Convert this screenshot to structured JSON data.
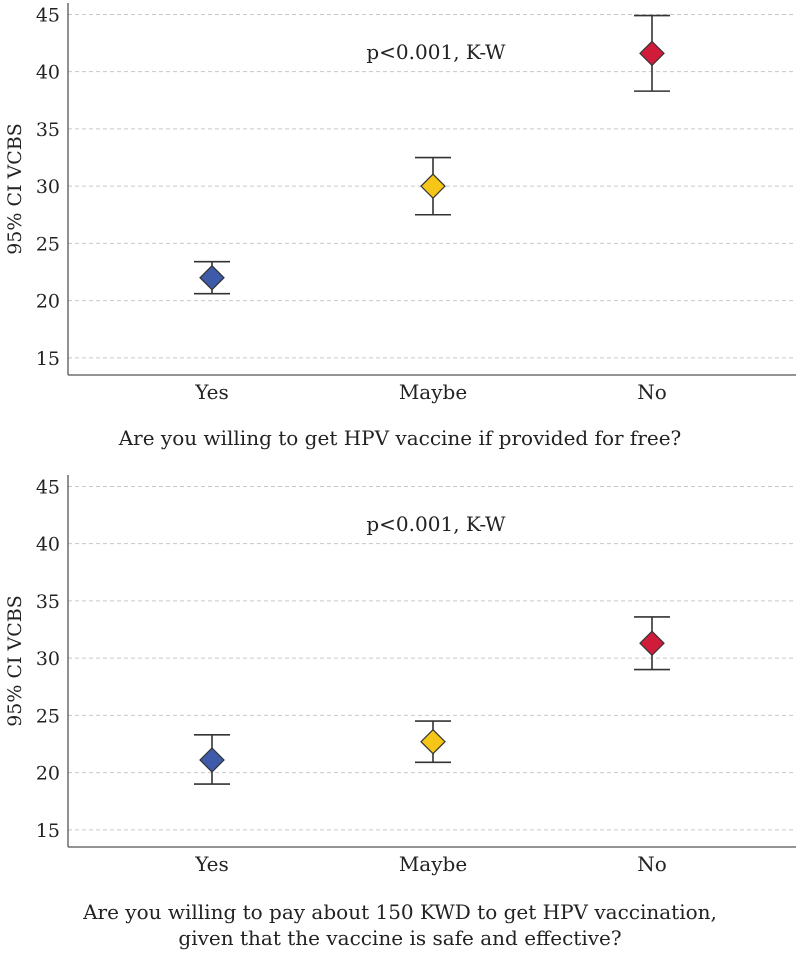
{
  "chart_data": [
    {
      "type": "scatter",
      "title": "",
      "annotation": "p<0.001, K-W",
      "xlabel": "Are you willing to get HPV vaccine if provided for free?",
      "ylabel": "95% CI VCBS",
      "ylim": [
        13.5,
        46
      ],
      "yticks": [
        15,
        20,
        25,
        30,
        35,
        40,
        45
      ],
      "grid": true,
      "categories": [
        "Yes",
        "Maybe",
        "No"
      ],
      "means": [
        22.0,
        30.0,
        41.6
      ],
      "ci_low": [
        20.6,
        27.5,
        38.3
      ],
      "ci_high": [
        23.4,
        32.5,
        44.9
      ],
      "colors": [
        "#3f5aa8",
        "#f5c518",
        "#d01c3a"
      ]
    },
    {
      "type": "scatter",
      "title": "",
      "annotation": "p<0.001, K-W",
      "xlabel": "Are you willing to pay about 150 KWD to get HPV vaccination, given that the vaccine is safe and effective?",
      "xlabel_lines": [
        "Are you willing to pay about 150 KWD to get HPV vaccination,",
        "given that the vaccine is safe and effective?"
      ],
      "ylabel": "95% CI VCBS",
      "ylim": [
        13.5,
        46
      ],
      "yticks": [
        15,
        20,
        25,
        30,
        35,
        40,
        45
      ],
      "grid": true,
      "categories": [
        "Yes",
        "Maybe",
        "No"
      ],
      "means": [
        21.1,
        22.7,
        31.3
      ],
      "ci_low": [
        19.0,
        20.9,
        29.0
      ],
      "ci_high": [
        23.3,
        24.5,
        33.6
      ],
      "colors": [
        "#3f5aa8",
        "#f5c518",
        "#d01c3a"
      ]
    }
  ]
}
